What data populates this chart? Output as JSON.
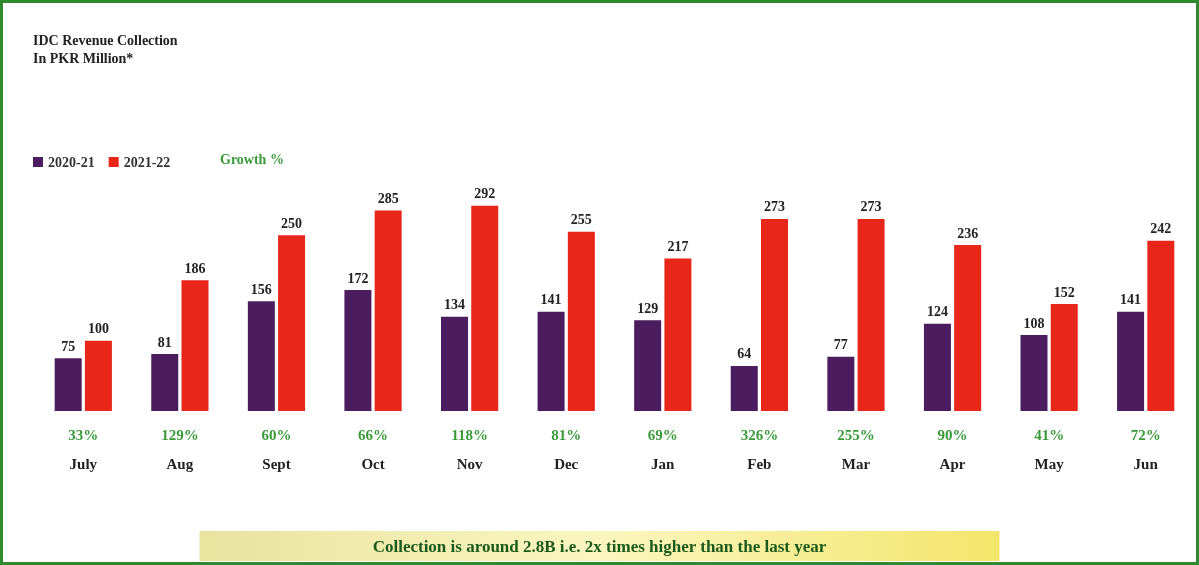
{
  "chart_data": {
    "type": "bar",
    "title": "IDC Revenue Collection",
    "subtitle": "In PKR Million*",
    "categories": [
      "July",
      "Aug",
      "Sept",
      "Oct",
      "Nov",
      "Dec",
      "Jan",
      "Feb",
      "Mar",
      "Apr",
      "May",
      "Jun"
    ],
    "series": [
      {
        "name": "2020-21",
        "color": "#4b1c5e",
        "values": [
          75,
          81,
          156,
          172,
          134,
          141,
          129,
          64,
          77,
          124,
          108,
          141
        ]
      },
      {
        "name": "2021-22",
        "color": "#e8261a",
        "values": [
          100,
          186,
          250,
          285,
          292,
          255,
          217,
          273,
          273,
          236,
          152,
          242
        ]
      }
    ],
    "data_labels": true,
    "legend": "top left",
    "grid": false,
    "annotations": [
      "Growth %",
      "Collection is around 2.8B i.e. 2x times higher than the last year",
      "33%",
      "129%",
      "60%",
      "66%",
      "118%",
      "81%",
      "69%",
      "326%",
      "255%",
      "90%",
      "41%",
      "72%"
    ]
  }
}
